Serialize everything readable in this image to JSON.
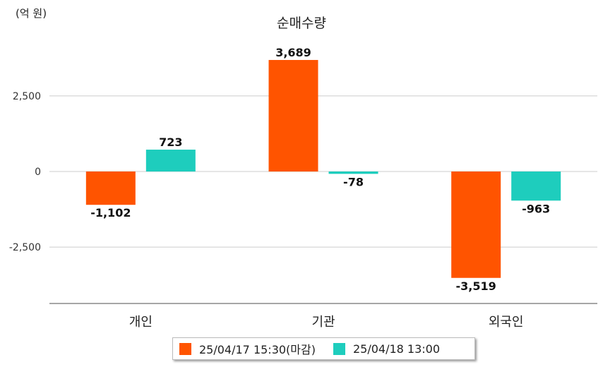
{
  "chart_data": {
    "type": "bar",
    "title": "순매수량",
    "unit_label": "(억 원)",
    "categories": [
      "개인",
      "기관",
      "외국인"
    ],
    "series": [
      {
        "name": "25/04/17 15:30(마감)",
        "color": "#ff5400",
        "values": [
          -1102,
          3689,
          -3519
        ]
      },
      {
        "name": "25/04/18 13:00",
        "color": "#1ecdbd",
        "values": [
          723,
          -78,
          -963
        ]
      }
    ],
    "data_labels": [
      [
        "-1,102",
        "3,689",
        "-3,519"
      ],
      [
        "723",
        "-78",
        "-963"
      ]
    ],
    "yticks": [
      2500,
      0,
      -2500
    ],
    "ytick_labels": [
      "2,500",
      "0",
      "-2,500"
    ],
    "ylim": [
      -4400,
      4400
    ],
    "grid": true,
    "legend_position": "bottom"
  }
}
